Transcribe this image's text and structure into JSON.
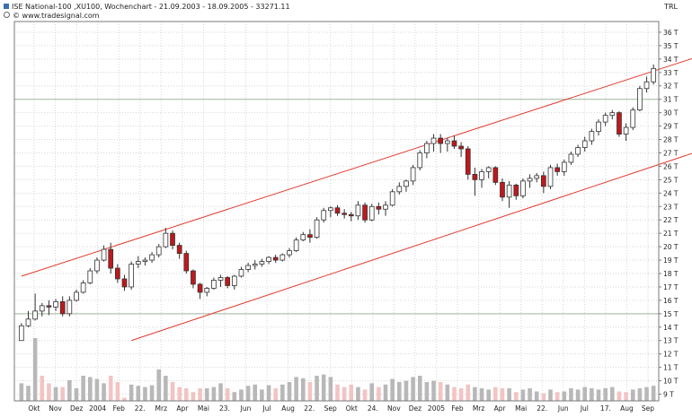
{
  "header": {
    "title": "ISE National-100 ,XU100, Wochenchart - 21.09.2003 - 18.09.2005 - 33271.11",
    "source": "© www.tradesignal.com",
    "currency": "TRL"
  },
  "colors": {
    "up_body": "#ffffff",
    "down_body": "#c0181c",
    "wick": "#333333",
    "channel": "#e23a2e",
    "volume_up": "#b8b8b8",
    "volume_down": "#f2c4c4",
    "grid": "#d6d6d6",
    "frame": "#7a7a7a",
    "reference": "#9fb89f"
  },
  "chart_data": {
    "type": "candlestick",
    "title": "ISE National-100 ,XU100, Wochenchart - 21.09.2003 - 18.09.2005 - 33271.11",
    "y_unit": "TRL",
    "ylim": [
      8.5,
      36.8
    ],
    "y_ticks": [
      "9 T",
      "10 T",
      "11 T",
      "12 T",
      "13 T",
      "14 T",
      "15 T",
      "16 T",
      "17 T",
      "18 T",
      "19 T",
      "20 T",
      "21 T",
      "22 T",
      "23 T",
      "24 T",
      "25 T",
      "26 T",
      "27 T",
      "28 T",
      "29 T",
      "30 T",
      "31 T",
      "32 T",
      "33 T",
      "34 T",
      "35 T",
      "36 T"
    ],
    "x_labels": [
      "Okt",
      "Nov",
      "Dez",
      "2004",
      "Feb",
      "22.",
      "Mrz",
      "Apr",
      "Mai",
      "23.",
      "Jun",
      "Jul",
      "Aug",
      "22.",
      "Sep",
      "Okt",
      "24.",
      "Nov",
      "Dez",
      "2005",
      "Feb",
      "Mrz",
      "Apr",
      "Mai",
      "22.",
      "Jun",
      "Jul",
      "17.",
      "Aug",
      "Sep"
    ],
    "grid": true,
    "candles": [
      {
        "o": 13.0,
        "h": 14.3,
        "l": 13.0,
        "c": 14.1
      },
      {
        "o": 14.1,
        "h": 15.2,
        "l": 14.0,
        "c": 14.6
      },
      {
        "o": 14.6,
        "h": 16.5,
        "l": 14.5,
        "c": 15.2
      },
      {
        "o": 15.2,
        "h": 15.8,
        "l": 14.8,
        "c": 15.6
      },
      {
        "o": 15.6,
        "h": 16.0,
        "l": 14.9,
        "c": 15.5
      },
      {
        "o": 15.5,
        "h": 16.1,
        "l": 15.2,
        "c": 15.9
      },
      {
        "o": 15.9,
        "h": 16.3,
        "l": 14.8,
        "c": 15.0
      },
      {
        "o": 15.0,
        "h": 16.3,
        "l": 14.8,
        "c": 16.0
      },
      {
        "o": 16.0,
        "h": 16.8,
        "l": 15.9,
        "c": 16.6
      },
      {
        "o": 16.6,
        "h": 17.5,
        "l": 16.5,
        "c": 17.3
      },
      {
        "o": 17.3,
        "h": 18.4,
        "l": 17.2,
        "c": 18.2
      },
      {
        "o": 18.2,
        "h": 19.2,
        "l": 18.0,
        "c": 19.0
      },
      {
        "o": 19.0,
        "h": 20.1,
        "l": 18.9,
        "c": 19.8
      },
      {
        "o": 19.8,
        "h": 20.3,
        "l": 18.0,
        "c": 18.4
      },
      {
        "o": 18.4,
        "h": 18.7,
        "l": 17.3,
        "c": 17.6
      },
      {
        "o": 17.6,
        "h": 17.9,
        "l": 16.7,
        "c": 17.0
      },
      {
        "o": 17.0,
        "h": 18.9,
        "l": 16.8,
        "c": 18.7
      },
      {
        "o": 18.7,
        "h": 19.3,
        "l": 18.4,
        "c": 18.9
      },
      {
        "o": 18.9,
        "h": 19.2,
        "l": 18.6,
        "c": 19.0
      },
      {
        "o": 19.0,
        "h": 19.6,
        "l": 18.8,
        "c": 19.4
      },
      {
        "o": 19.4,
        "h": 20.2,
        "l": 19.2,
        "c": 20.0
      },
      {
        "o": 20.0,
        "h": 21.4,
        "l": 19.9,
        "c": 21.0
      },
      {
        "o": 21.0,
        "h": 21.2,
        "l": 19.8,
        "c": 20.1
      },
      {
        "o": 20.1,
        "h": 20.3,
        "l": 19.1,
        "c": 19.5
      },
      {
        "o": 19.5,
        "h": 19.7,
        "l": 18.0,
        "c": 18.2
      },
      {
        "o": 18.2,
        "h": 18.3,
        "l": 16.9,
        "c": 17.2
      },
      {
        "o": 17.2,
        "h": 17.3,
        "l": 16.1,
        "c": 16.6
      },
      {
        "o": 16.6,
        "h": 17.0,
        "l": 16.3,
        "c": 16.9
      },
      {
        "o": 16.9,
        "h": 17.7,
        "l": 16.8,
        "c": 17.5
      },
      {
        "o": 17.5,
        "h": 17.9,
        "l": 17.0,
        "c": 17.7
      },
      {
        "o": 17.7,
        "h": 17.8,
        "l": 16.9,
        "c": 17.1
      },
      {
        "o": 17.1,
        "h": 17.9,
        "l": 16.8,
        "c": 17.8
      },
      {
        "o": 17.8,
        "h": 18.5,
        "l": 17.7,
        "c": 18.3
      },
      {
        "o": 18.3,
        "h": 18.8,
        "l": 18.1,
        "c": 18.6
      },
      {
        "o": 18.6,
        "h": 19.0,
        "l": 18.3,
        "c": 18.7
      },
      {
        "o": 18.7,
        "h": 19.1,
        "l": 18.5,
        "c": 18.9
      },
      {
        "o": 18.9,
        "h": 19.3,
        "l": 18.7,
        "c": 19.2
      },
      {
        "o": 19.2,
        "h": 19.4,
        "l": 18.8,
        "c": 19.0
      },
      {
        "o": 19.0,
        "h": 19.5,
        "l": 18.9,
        "c": 19.4
      },
      {
        "o": 19.4,
        "h": 19.9,
        "l": 19.2,
        "c": 19.7
      },
      {
        "o": 19.7,
        "h": 20.7,
        "l": 19.6,
        "c": 20.5
      },
      {
        "o": 20.5,
        "h": 21.1,
        "l": 20.4,
        "c": 20.9
      },
      {
        "o": 20.9,
        "h": 21.3,
        "l": 20.3,
        "c": 20.7
      },
      {
        "o": 20.7,
        "h": 22.2,
        "l": 20.6,
        "c": 22.0
      },
      {
        "o": 22.0,
        "h": 22.9,
        "l": 21.8,
        "c": 22.7
      },
      {
        "o": 22.7,
        "h": 23.0,
        "l": 22.2,
        "c": 22.9
      },
      {
        "o": 22.9,
        "h": 23.1,
        "l": 22.3,
        "c": 22.5
      },
      {
        "o": 22.5,
        "h": 22.8,
        "l": 22.1,
        "c": 22.4
      },
      {
        "o": 22.4,
        "h": 22.6,
        "l": 21.9,
        "c": 22.3
      },
      {
        "o": 22.3,
        "h": 23.4,
        "l": 22.0,
        "c": 23.1
      },
      {
        "o": 23.1,
        "h": 23.3,
        "l": 21.8,
        "c": 22.0
      },
      {
        "o": 22.0,
        "h": 23.2,
        "l": 21.9,
        "c": 23.0
      },
      {
        "o": 23.0,
        "h": 23.3,
        "l": 22.4,
        "c": 22.8
      },
      {
        "o": 22.8,
        "h": 23.4,
        "l": 22.3,
        "c": 23.1
      },
      {
        "o": 23.1,
        "h": 24.3,
        "l": 23.0,
        "c": 24.1
      },
      {
        "o": 24.1,
        "h": 24.8,
        "l": 23.9,
        "c": 24.5
      },
      {
        "o": 24.5,
        "h": 25.0,
        "l": 24.1,
        "c": 24.9
      },
      {
        "o": 24.9,
        "h": 26.1,
        "l": 24.6,
        "c": 25.9
      },
      {
        "o": 25.9,
        "h": 27.2,
        "l": 25.7,
        "c": 27.0
      },
      {
        "o": 27.0,
        "h": 27.9,
        "l": 26.6,
        "c": 27.7
      },
      {
        "o": 27.7,
        "h": 28.4,
        "l": 27.1,
        "c": 28.1
      },
      {
        "o": 28.1,
        "h": 28.4,
        "l": 27.0,
        "c": 27.7
      },
      {
        "o": 27.7,
        "h": 28.1,
        "l": 27.1,
        "c": 27.9
      },
      {
        "o": 27.9,
        "h": 28.3,
        "l": 27.3,
        "c": 27.5
      },
      {
        "o": 27.5,
        "h": 27.8,
        "l": 26.7,
        "c": 27.3
      },
      {
        "o": 27.3,
        "h": 27.5,
        "l": 25.0,
        "c": 25.4
      },
      {
        "o": 25.4,
        "h": 25.9,
        "l": 23.8,
        "c": 25.0
      },
      {
        "o": 25.0,
        "h": 25.8,
        "l": 24.4,
        "c": 25.6
      },
      {
        "o": 25.6,
        "h": 26.0,
        "l": 25.1,
        "c": 25.9
      },
      {
        "o": 25.9,
        "h": 26.0,
        "l": 24.6,
        "c": 24.8
      },
      {
        "o": 24.8,
        "h": 25.1,
        "l": 23.4,
        "c": 23.7
      },
      {
        "o": 23.7,
        "h": 24.9,
        "l": 22.9,
        "c": 24.6
      },
      {
        "o": 24.6,
        "h": 24.7,
        "l": 23.5,
        "c": 23.8
      },
      {
        "o": 23.8,
        "h": 25.1,
        "l": 23.6,
        "c": 24.9
      },
      {
        "o": 24.9,
        "h": 25.4,
        "l": 24.4,
        "c": 25.1
      },
      {
        "o": 25.1,
        "h": 25.5,
        "l": 24.8,
        "c": 25.3
      },
      {
        "o": 25.3,
        "h": 25.6,
        "l": 24.0,
        "c": 24.5
      },
      {
        "o": 24.5,
        "h": 26.1,
        "l": 24.3,
        "c": 25.9
      },
      {
        "o": 25.9,
        "h": 26.2,
        "l": 25.3,
        "c": 25.6
      },
      {
        "o": 25.6,
        "h": 26.5,
        "l": 25.3,
        "c": 26.3
      },
      {
        "o": 26.3,
        "h": 27.1,
        "l": 26.1,
        "c": 26.9
      },
      {
        "o": 26.9,
        "h": 27.6,
        "l": 26.7,
        "c": 27.4
      },
      {
        "o": 27.4,
        "h": 28.2,
        "l": 27.1,
        "c": 27.9
      },
      {
        "o": 27.9,
        "h": 28.8,
        "l": 27.6,
        "c": 28.6
      },
      {
        "o": 28.6,
        "h": 29.5,
        "l": 28.3,
        "c": 29.3
      },
      {
        "o": 29.3,
        "h": 30.0,
        "l": 29.0,
        "c": 29.8
      },
      {
        "o": 29.8,
        "h": 30.2,
        "l": 29.5,
        "c": 30.0
      },
      {
        "o": 30.0,
        "h": 30.1,
        "l": 28.2,
        "c": 28.4
      },
      {
        "o": 28.4,
        "h": 29.2,
        "l": 27.9,
        "c": 28.9
      },
      {
        "o": 28.9,
        "h": 30.4,
        "l": 28.7,
        "c": 30.2
      },
      {
        "o": 30.2,
        "h": 32.0,
        "l": 30.1,
        "c": 31.8
      },
      {
        "o": 31.8,
        "h": 32.7,
        "l": 31.5,
        "c": 32.3
      },
      {
        "o": 32.3,
        "h": 33.6,
        "l": 32.1,
        "c": 33.3
      }
    ],
    "volume": [
      {
        "h": 0.28,
        "dir": "up"
      },
      {
        "h": 0.24,
        "dir": "up"
      },
      {
        "h": 1.0,
        "dir": "up"
      },
      {
        "h": 0.4,
        "dir": "down"
      },
      {
        "h": 0.28,
        "dir": "down"
      },
      {
        "h": 0.22,
        "dir": "up"
      },
      {
        "h": 0.22,
        "dir": "down"
      },
      {
        "h": 0.33,
        "dir": "up"
      },
      {
        "h": 0.2,
        "dir": "up"
      },
      {
        "h": 0.4,
        "dir": "up"
      },
      {
        "h": 0.38,
        "dir": "up"
      },
      {
        "h": 0.35,
        "dir": "up"
      },
      {
        "h": 0.28,
        "dir": "up"
      },
      {
        "h": 0.4,
        "dir": "down"
      },
      {
        "h": 0.3,
        "dir": "down"
      },
      {
        "h": 0.05,
        "dir": "down"
      },
      {
        "h": 0.26,
        "dir": "up"
      },
      {
        "h": 0.24,
        "dir": "up"
      },
      {
        "h": 0.22,
        "dir": "up"
      },
      {
        "h": 0.25,
        "dir": "up"
      },
      {
        "h": 0.5,
        "dir": "up"
      },
      {
        "h": 0.4,
        "dir": "up"
      },
      {
        "h": 0.3,
        "dir": "down"
      },
      {
        "h": 0.22,
        "dir": "down"
      },
      {
        "h": 0.2,
        "dir": "down"
      },
      {
        "h": 0.14,
        "dir": "down"
      },
      {
        "h": 0.2,
        "dir": "down"
      },
      {
        "h": 0.2,
        "dir": "up"
      },
      {
        "h": 0.22,
        "dir": "up"
      },
      {
        "h": 0.28,
        "dir": "up"
      },
      {
        "h": 0.2,
        "dir": "down"
      },
      {
        "h": 0.14,
        "dir": "up"
      },
      {
        "h": 0.18,
        "dir": "up"
      },
      {
        "h": 0.24,
        "dir": "up"
      },
      {
        "h": 0.26,
        "dir": "up"
      },
      {
        "h": 0.18,
        "dir": "up"
      },
      {
        "h": 0.25,
        "dir": "up"
      },
      {
        "h": 0.2,
        "dir": "down"
      },
      {
        "h": 0.26,
        "dir": "up"
      },
      {
        "h": 0.3,
        "dir": "up"
      },
      {
        "h": 0.38,
        "dir": "up"
      },
      {
        "h": 0.36,
        "dir": "up"
      },
      {
        "h": 0.3,
        "dir": "down"
      },
      {
        "h": 0.4,
        "dir": "up"
      },
      {
        "h": 0.42,
        "dir": "up"
      },
      {
        "h": 0.38,
        "dir": "up"
      },
      {
        "h": 0.26,
        "dir": "down"
      },
      {
        "h": 0.22,
        "dir": "down"
      },
      {
        "h": 0.26,
        "dir": "down"
      },
      {
        "h": 0.22,
        "dir": "up"
      },
      {
        "h": 0.18,
        "dir": "down"
      },
      {
        "h": 0.28,
        "dir": "up"
      },
      {
        "h": 0.22,
        "dir": "down"
      },
      {
        "h": 0.26,
        "dir": "up"
      },
      {
        "h": 0.35,
        "dir": "up"
      },
      {
        "h": 0.3,
        "dir": "up"
      },
      {
        "h": 0.32,
        "dir": "up"
      },
      {
        "h": 0.38,
        "dir": "up"
      },
      {
        "h": 0.4,
        "dir": "up"
      },
      {
        "h": 0.3,
        "dir": "up"
      },
      {
        "h": 0.32,
        "dir": "up"
      },
      {
        "h": 0.3,
        "dir": "down"
      },
      {
        "h": 0.26,
        "dir": "up"
      },
      {
        "h": 0.22,
        "dir": "down"
      },
      {
        "h": 0.2,
        "dir": "down"
      },
      {
        "h": 0.26,
        "dir": "down"
      },
      {
        "h": 0.22,
        "dir": "up"
      },
      {
        "h": 0.2,
        "dir": "up"
      },
      {
        "h": 0.18,
        "dir": "up"
      },
      {
        "h": 0.22,
        "dir": "down"
      },
      {
        "h": 0.2,
        "dir": "down"
      },
      {
        "h": 0.2,
        "dir": "up"
      },
      {
        "h": 0.14,
        "dir": "down"
      },
      {
        "h": 0.18,
        "dir": "up"
      },
      {
        "h": 0.2,
        "dir": "up"
      },
      {
        "h": 0.15,
        "dir": "up"
      },
      {
        "h": 0.12,
        "dir": "down"
      },
      {
        "h": 0.18,
        "dir": "up"
      },
      {
        "h": 0.14,
        "dir": "down"
      },
      {
        "h": 0.15,
        "dir": "up"
      },
      {
        "h": 0.2,
        "dir": "up"
      },
      {
        "h": 0.18,
        "dir": "up"
      },
      {
        "h": 0.22,
        "dir": "up"
      },
      {
        "h": 0.2,
        "dir": "up"
      },
      {
        "h": 0.18,
        "dir": "up"
      },
      {
        "h": 0.2,
        "dir": "up"
      },
      {
        "h": 0.22,
        "dir": "up"
      },
      {
        "h": 0.15,
        "dir": "down"
      },
      {
        "h": 0.14,
        "dir": "down"
      },
      {
        "h": 0.18,
        "dir": "up"
      },
      {
        "h": 0.2,
        "dir": "up"
      },
      {
        "h": 0.22,
        "dir": "up"
      },
      {
        "h": 0.24,
        "dir": "up"
      }
    ],
    "channel_upper": {
      "start": {
        "index": 0,
        "value": 17.8
      },
      "end": {
        "index": 92,
        "value": 33.1
      }
    },
    "channel_lower": {
      "start": {
        "index": 16,
        "value": 13.0
      },
      "end": {
        "index": 92,
        "value": 26.0
      }
    },
    "reference_lines": [
      15,
      31
    ]
  }
}
